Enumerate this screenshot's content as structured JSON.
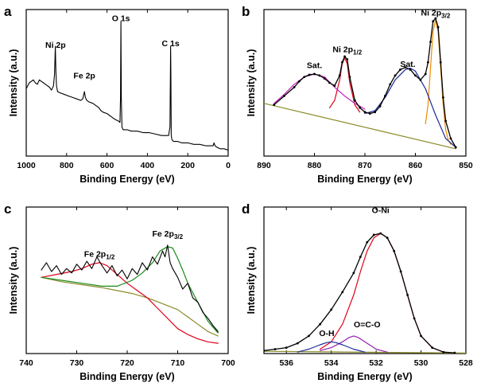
{
  "chart_data": [
    {
      "panel": "a",
      "type": "line",
      "xlabel": "Binding Energy (eV)",
      "ylabel": "Intensity (a.u.)",
      "xlim": [
        1000,
        0
      ],
      "ylim": [
        0,
        100
      ],
      "xticks": [
        1000,
        800,
        600,
        400,
        200,
        0
      ],
      "reversed_x": true,
      "annotations": [
        {
          "text": "Ni 2p",
          "x": 855,
          "y": 74
        },
        {
          "text": "Fe 2p",
          "x": 712,
          "y": 53
        },
        {
          "text": "O 1s",
          "x": 531,
          "y": 92
        },
        {
          "text": "C 1s",
          "x": 285,
          "y": 75
        }
      ],
      "series": [
        {
          "color": "#000000",
          "width": 1.1,
          "x": [
            1000,
            985,
            975,
            965,
            955,
            945,
            935,
            925,
            915,
            905,
            895,
            885,
            875,
            865,
            860,
            856,
            853,
            850,
            845,
            830,
            810,
            790,
            770,
            750,
            730,
            720,
            712,
            707,
            700,
            690,
            670,
            650,
            640,
            630,
            620,
            600,
            590,
            580,
            570,
            560,
            545,
            536,
            533,
            531,
            529,
            526,
            520,
            500,
            480,
            450,
            420,
            390,
            360,
            330,
            310,
            295,
            288,
            286,
            285,
            284,
            282,
            278,
            270,
            250,
            230,
            200,
            170,
            140,
            110,
            90,
            75,
            70,
            65,
            55,
            40,
            20,
            0
          ],
          "y": [
            46,
            50,
            51,
            52,
            50,
            49,
            52,
            51,
            50,
            49,
            48,
            47,
            45,
            48,
            56,
            75,
            58,
            48,
            44,
            43,
            42,
            41,
            40,
            39,
            38,
            39,
            44,
            40,
            38,
            37,
            36,
            34,
            33,
            31,
            30,
            29,
            28,
            27,
            26,
            25,
            24,
            23,
            40,
            92,
            40,
            20,
            18,
            18,
            17,
            17,
            16,
            16,
            15,
            14,
            14,
            14,
            20,
            60,
            75,
            60,
            14,
            11,
            10,
            10,
            9,
            9,
            8,
            8,
            7,
            7,
            7,
            9,
            7,
            6,
            5,
            5,
            4
          ]
        }
      ]
    },
    {
      "panel": "b",
      "type": "line",
      "xlabel": "Binding Energy (eV)",
      "ylabel": "Intensity (a.u.)",
      "xlim": [
        890,
        850
      ],
      "ylim": [
        0,
        100
      ],
      "xticks": [
        890,
        880,
        870,
        860,
        850
      ],
      "reversed_x": true,
      "annotations": [
        {
          "text": "Sat.",
          "x": 880,
          "y": 60
        },
        {
          "text": "Ni 2p1/2",
          "sub_base": "Ni 2p",
          "sub": "1/2",
          "x": 873.5,
          "y": 71
        },
        {
          "text": "Sat.",
          "x": 861.5,
          "y": 61
        },
        {
          "text": "Ni 2p3/2",
          "sub_base": "Ni 2p",
          "sub": "3/2",
          "x": 856,
          "y": 96
        }
      ],
      "series": [
        {
          "name": "",
          "color": "#000000",
          "width": 1.3,
          "dots": true,
          "x": [
            888,
            886,
            884,
            883,
            882,
            881,
            880,
            879,
            878,
            877,
            876,
            875,
            874.5,
            874,
            873.5,
            873,
            872,
            871,
            870,
            869,
            868,
            867,
            866,
            865,
            864,
            863,
            862,
            861,
            860,
            859,
            858,
            857.5,
            857,
            856.5,
            856,
            855.5,
            855,
            854.5,
            854,
            853,
            852
          ],
          "y": [
            35,
            41,
            47,
            51,
            54,
            55.5,
            56,
            55,
            53,
            50,
            48,
            55,
            64,
            68,
            66,
            54,
            38,
            33,
            30,
            29,
            30,
            34,
            41,
            49,
            55,
            59,
            60.5,
            59,
            55,
            52,
            56,
            64,
            78,
            92,
            94,
            88,
            64,
            40,
            24,
            12,
            6
          ]
        },
        {
          "name": "",
          "color": "#8B8B2A",
          "width": 1.2,
          "x": [
            890,
            852
          ],
          "y": [
            36,
            5
          ]
        },
        {
          "name": "",
          "color": "#E0001B",
          "width": 1.2,
          "x": [
            877,
            876,
            875,
            874.5,
            874,
            873.5,
            873,
            872,
            871
          ],
          "y": [
            33,
            38,
            52,
            63,
            67,
            63,
            50,
            35,
            30
          ]
        },
        {
          "name": "",
          "color": "#F08A00",
          "width": 1.2,
          "x": [
            858,
            857.5,
            857,
            856.5,
            856,
            855.5,
            855,
            854.5,
            854,
            853.5,
            853
          ],
          "y": [
            22,
            35,
            60,
            85,
            93,
            85,
            60,
            35,
            18,
            11,
            8
          ]
        },
        {
          "name": "",
          "color": "#C020C0",
          "width": 1.2,
          "x": [
            888,
            886,
            884,
            882,
            880,
            878,
            876,
            874,
            872,
            870
          ],
          "y": [
            36,
            42,
            49,
            54,
            56,
            54,
            47,
            41,
            36,
            32
          ]
        },
        {
          "name": "",
          "color": "#1A2A9A",
          "width": 1.2,
          "x": [
            870,
            868,
            866,
            864,
            862,
            861,
            860,
            858,
            856,
            854,
            852
          ],
          "y": [
            29,
            31,
            40,
            52,
            59,
            60,
            58,
            46,
            28,
            12,
            6
          ]
        }
      ]
    },
    {
      "panel": "c",
      "type": "line",
      "xlabel": "Binding Energy (eV)",
      "ylabel": "Intensity (a.u.)",
      "xlim": [
        740,
        700
      ],
      "ylim": [
        0,
        100
      ],
      "xticks": [
        740,
        730,
        720,
        710,
        700
      ],
      "reversed_x": true,
      "annotations": [
        {
          "text": "Fe 2p1/2",
          "sub_base": "Fe 2p",
          "sub": "1/2",
          "x": 725.5,
          "y": 66
        },
        {
          "text": "Fe 2p3/2",
          "sub_base": "Fe 2p",
          "sub": "3/2",
          "x": 712,
          "y": 80
        }
      ],
      "series": [
        {
          "name": "",
          "color": "#000000",
          "width": 1.1,
          "x": [
            737,
            736,
            735,
            734,
            733,
            732,
            731,
            730,
            729,
            728,
            727,
            726,
            725,
            724,
            723,
            722,
            721,
            720,
            719,
            718,
            717,
            716,
            715,
            714,
            713,
            712.5,
            712,
            711.5,
            711,
            710,
            709,
            708,
            707,
            706,
            705,
            704,
            703,
            702
          ],
          "y": [
            57,
            62,
            56,
            60,
            54,
            58,
            55,
            61,
            57,
            63,
            58,
            66,
            60,
            55,
            60,
            53,
            57,
            51,
            58,
            54,
            62,
            57,
            66,
            61,
            70,
            66,
            74,
            62,
            58,
            52,
            44,
            48,
            38,
            35,
            28,
            24,
            19,
            15
          ]
        },
        {
          "name": "",
          "color": "#8B8B2A",
          "width": 1.2,
          "x": [
            737,
            733,
            729,
            725,
            722,
            719,
            716,
            713,
            710,
            708,
            706,
            704,
            702
          ],
          "y": [
            52,
            49,
            47,
            45,
            43,
            41,
            38,
            34,
            30,
            25,
            20,
            15,
            12
          ]
        },
        {
          "name": "",
          "color": "#E0001B",
          "width": 1.2,
          "x": [
            737,
            734,
            731,
            729,
            727,
            725.5,
            724,
            722,
            720,
            718,
            716,
            714,
            712,
            710,
            708,
            706,
            704,
            702
          ],
          "y": [
            52,
            54,
            56,
            58,
            61,
            62,
            60,
            54,
            48,
            43,
            38,
            31,
            24,
            17,
            13,
            10,
            8,
            7
          ]
        },
        {
          "name": "",
          "color": "#1A8A1A",
          "width": 1.2,
          "x": [
            737,
            733,
            729,
            725,
            722,
            719,
            717,
            715,
            713.5,
            712,
            711,
            710,
            709,
            708,
            706,
            704,
            702
          ],
          "y": [
            52,
            50,
            48,
            46,
            46,
            50,
            55,
            62,
            70,
            73,
            72,
            65,
            57,
            48,
            35,
            22,
            14
          ]
        }
      ]
    },
    {
      "panel": "d",
      "type": "line",
      "xlabel": "Binding Energy (eV)",
      "ylabel": "Intensity (a.u.)",
      "xlim": [
        537,
        528
      ],
      "ylim": [
        0,
        100
      ],
      "xticks": [
        536,
        534,
        532,
        530,
        528
      ],
      "reversed_x": true,
      "annotations": [
        {
          "text": "O-Ni",
          "x": 531.8,
          "y": 96
        },
        {
          "text": "O=C-O",
          "x": 532.4,
          "y": 18
        },
        {
          "text": "O-H",
          "x": 534.2,
          "y": 12
        }
      ],
      "series": [
        {
          "name": "",
          "color": "#000000",
          "width": 1.3,
          "dots": true,
          "x": [
            537,
            536.5,
            536,
            535.5,
            535,
            534.5,
            534,
            533.5,
            533,
            532.7,
            532.4,
            532.1,
            531.8,
            531.5,
            531.2,
            530.9,
            530.6,
            530.3,
            530,
            529.5,
            529,
            528.5
          ],
          "y": [
            2,
            3,
            4,
            7,
            12,
            20,
            30,
            42,
            55,
            66,
            76,
            81,
            82,
            79,
            70,
            56,
            40,
            24,
            12,
            4,
            1,
            0.5
          ]
        },
        {
          "name": "",
          "color": "#8B8B2A",
          "width": 1.2,
          "x": [
            537,
            528
          ],
          "y": [
            1.5,
            0.3
          ]
        },
        {
          "name": "",
          "color": "#E0001B",
          "width": 1.2,
          "x": [
            534.5,
            534,
            533.5,
            533,
            532.7,
            532.4,
            532.1,
            531.8,
            531.5,
            531.2,
            530.9,
            530.6,
            530.3,
            530,
            529.5,
            529
          ],
          "y": [
            3,
            8,
            20,
            40,
            56,
            70,
            79,
            82,
            79,
            70,
            56,
            40,
            24,
            12,
            4,
            1
          ]
        },
        {
          "name": "",
          "color": "#9020B0",
          "width": 1.2,
          "x": [
            534.5,
            534,
            533.5,
            533.2,
            533,
            532.8,
            532.5,
            532,
            531.5
          ],
          "y": [
            2,
            4,
            8,
            11,
            12,
            11,
            8,
            3,
            1
          ]
        },
        {
          "name": "",
          "color": "#1A2A9A",
          "width": 1.2,
          "x": [
            535.5,
            535,
            534.5,
            534.2,
            534,
            533.8,
            533.5,
            533,
            532.5
          ],
          "y": [
            1,
            3,
            6,
            7.5,
            8,
            7.5,
            6,
            3,
            1
          ]
        }
      ]
    }
  ]
}
